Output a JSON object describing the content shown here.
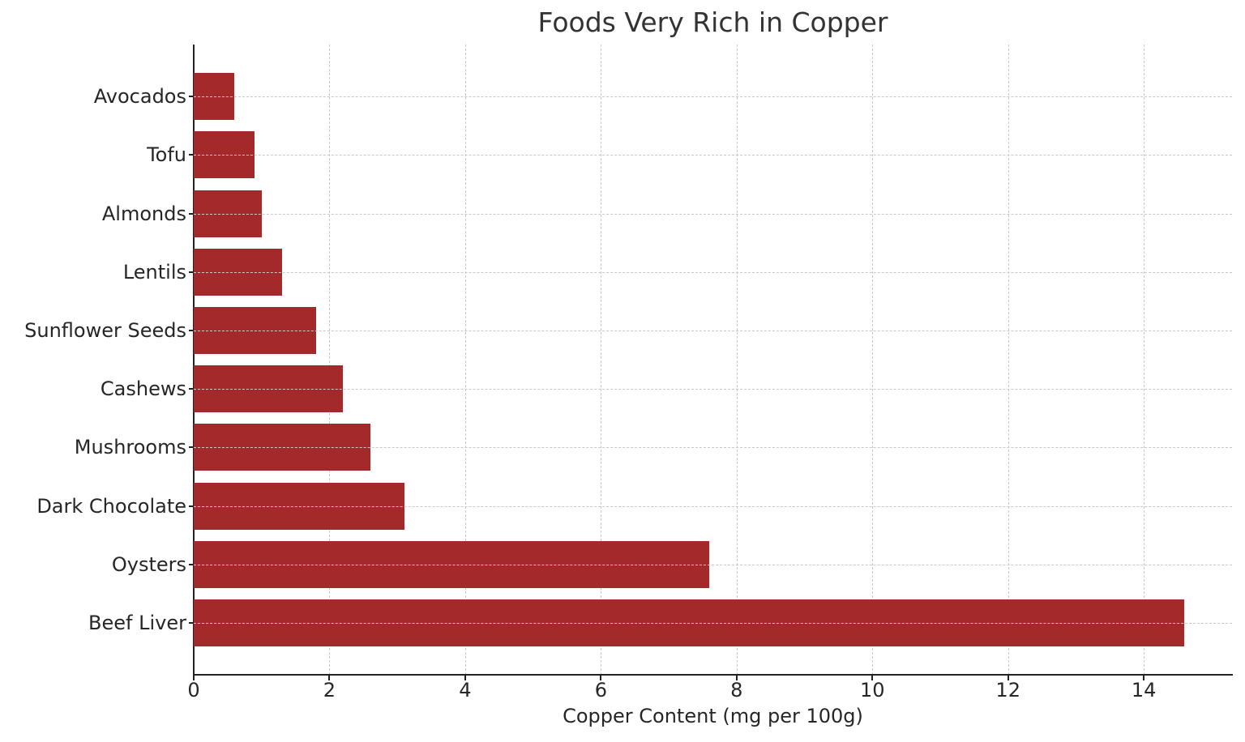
{
  "chart_data": {
    "type": "bar",
    "orientation": "horizontal",
    "title": "Foods Very Rich in Copper",
    "xlabel": "Copper Content (mg per 100g)",
    "ylabel": "",
    "categories": [
      "Beef Liver",
      "Oysters",
      "Dark Chocolate",
      "Mushrooms",
      "Cashews",
      "Sunflower Seeds",
      "Lentils",
      "Almonds",
      "Tofu",
      "Avocados"
    ],
    "values": [
      14.6,
      7.6,
      3.1,
      2.6,
      2.2,
      1.8,
      1.3,
      1.0,
      0.9,
      0.6
    ],
    "xlim": [
      0,
      15.3
    ],
    "xticks": [
      "0",
      "2",
      "4",
      "6",
      "8",
      "10",
      "12",
      "14"
    ],
    "grid": true,
    "bar_color": "#a3292b",
    "legend": null
  }
}
